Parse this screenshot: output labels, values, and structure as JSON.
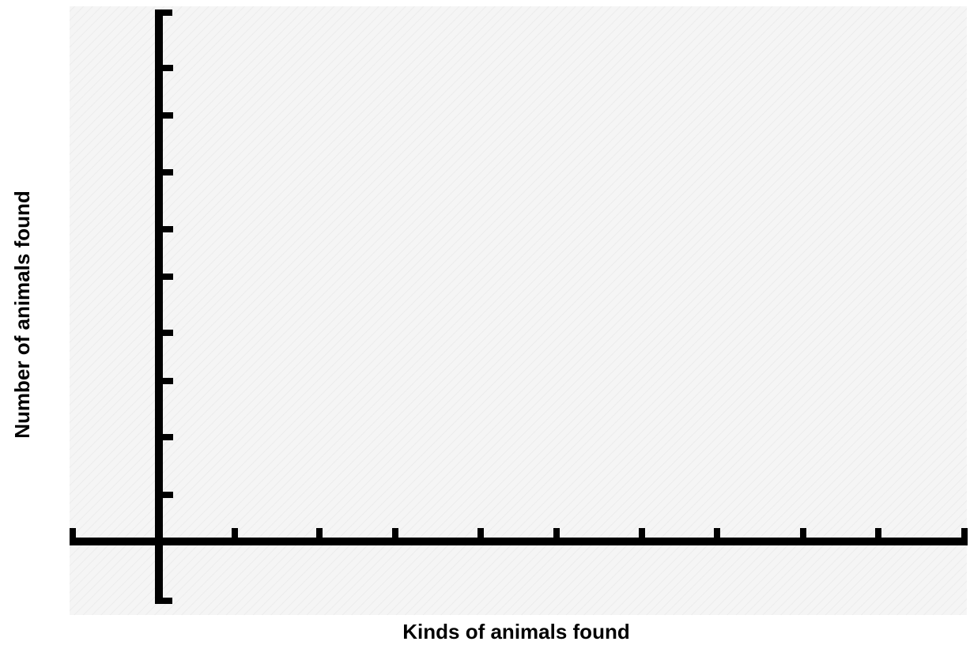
{
  "chart_data": {
    "type": "bar",
    "title": "",
    "xlabel": "Kinds of animals found",
    "ylabel": "Number of animals found",
    "categories": [],
    "series": [],
    "x_tick_count": 10,
    "y_tick_count": 10,
    "grid": false,
    "colors": {
      "background": "#f4f4f4",
      "axis": "#000000"
    }
  }
}
